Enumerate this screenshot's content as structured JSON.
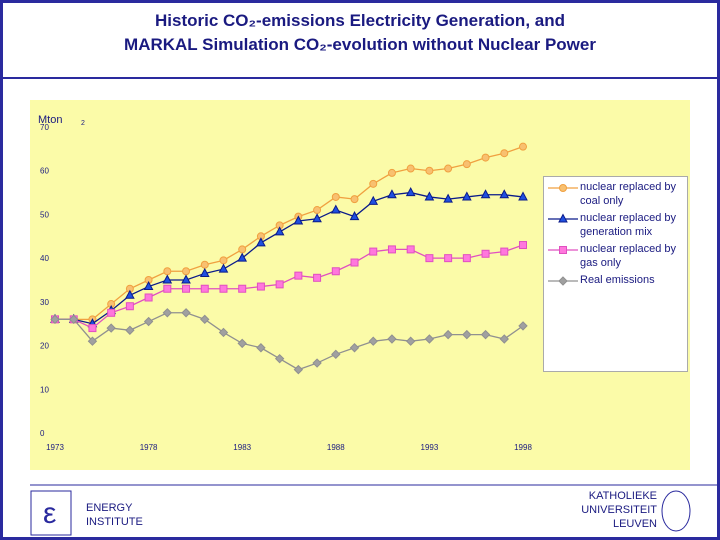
{
  "title_lines": [
    "Historic CO₂-emissions Electricity Generation, and",
    "MARKAL Simulation CO₂-evolution without Nuclear Power"
  ],
  "chart_data": {
    "type": "line",
    "y_label": "Mton",
    "y_label_sub": "2",
    "x": [
      1973,
      1974,
      1975,
      1976,
      1977,
      1978,
      1979,
      1980,
      1981,
      1982,
      1983,
      1984,
      1985,
      1986,
      1987,
      1988,
      1989,
      1990,
      1991,
      1992,
      1993,
      1994,
      1995,
      1996,
      1997,
      1998
    ],
    "xlim": [
      1973,
      1998
    ],
    "xticks": [
      1973,
      1978,
      1983,
      1988,
      1993,
      1998
    ],
    "ylim": [
      0,
      70
    ],
    "yticks": [
      0,
      10,
      20,
      30,
      40,
      50,
      60,
      70
    ],
    "series": [
      {
        "name": "nuclear replaced by coal only",
        "color": "#f0a040",
        "fill": "#f8c070",
        "marker": "circle",
        "values": [
          26,
          26,
          26,
          29.5,
          33,
          35,
          37,
          37,
          38.5,
          39.5,
          42,
          45,
          47.5,
          49.5,
          51,
          54,
          53.5,
          57,
          59.5,
          60.5,
          60,
          60.5,
          61.5,
          63,
          64,
          65.5
        ]
      },
      {
        "name": "nuclear replaced by generation mix",
        "color": "#0a1a8a",
        "fill": "#1f4fe0",
        "marker": "triangle",
        "values": [
          26,
          26,
          25,
          28,
          31.5,
          33.5,
          35,
          35,
          36.5,
          37.5,
          40,
          43.5,
          46,
          48.5,
          49,
          51,
          49.5,
          53,
          54.5,
          55,
          54,
          53.5,
          54,
          54.5,
          54.5,
          54
        ]
      },
      {
        "name": "nuclear replaced by gas only",
        "color": "#e050c0",
        "fill": "#ff77dd",
        "marker": "square",
        "values": [
          26,
          26,
          24,
          27.5,
          29,
          31,
          33,
          33,
          33,
          33,
          33,
          33.5,
          34,
          36,
          35.5,
          37,
          39,
          41.5,
          42,
          42,
          40,
          40,
          40,
          41,
          41.5,
          43
        ]
      },
      {
        "name": "Real emissions",
        "color": "#909090",
        "fill": "#a0a0a0",
        "marker": "diamond",
        "values": [
          26,
          26,
          21,
          24,
          23.5,
          25.5,
          27.5,
          27.5,
          26,
          23,
          20.5,
          19.5,
          17,
          14.5,
          16,
          18,
          19.5,
          21,
          21.5,
          21,
          21.5,
          22.5,
          22.5,
          22.5,
          21.5,
          24.5
        ]
      }
    ]
  },
  "footer": {
    "left": [
      "ENERGY",
      "INSTITUTE"
    ],
    "right": [
      "KATHOLIEKE",
      "UNIVERSITEIT",
      "LEUVEN"
    ]
  }
}
